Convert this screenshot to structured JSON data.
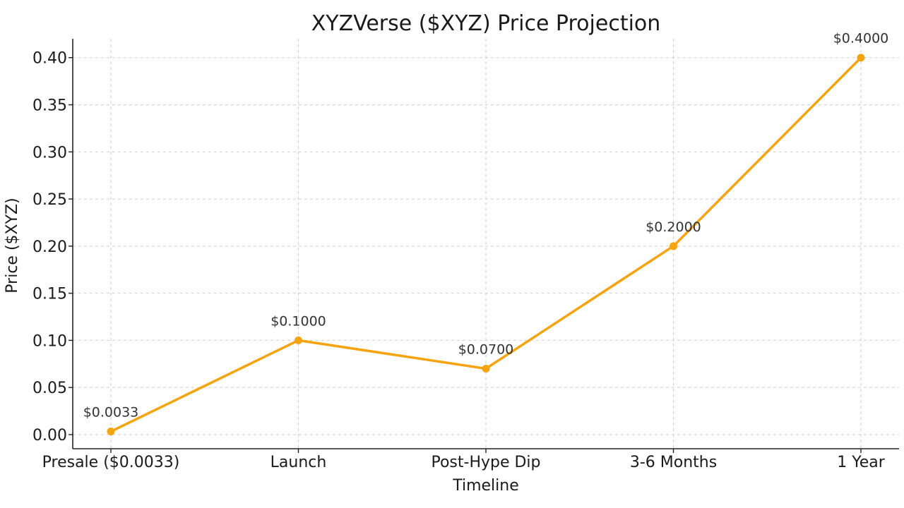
{
  "chart_data": {
    "type": "line",
    "title": "XYZVerse ($XYZ) Price Projection",
    "xlabel": "Timeline",
    "ylabel": "Price ($XYZ)",
    "categories": [
      "Presale ($0.0033)",
      "Launch",
      "Post-Hype Dip",
      "3-6 Months",
      "1 Year"
    ],
    "series": [
      {
        "values": [
          0.0033,
          0.1,
          0.07,
          0.2,
          0.4
        ],
        "labels": [
          "$0.0033",
          "$0.1000",
          "$0.0700",
          "$0.2000",
          "$0.4000"
        ],
        "color": "#F5A40F"
      }
    ],
    "ylim": [
      -0.015,
      0.42
    ],
    "yticks": [
      0.0,
      0.05,
      0.1,
      0.15,
      0.2,
      0.25,
      0.3,
      0.35,
      0.4
    ],
    "ytick_labels": [
      "0.00",
      "0.05",
      "0.10",
      "0.15",
      "0.20",
      "0.25",
      "0.30",
      "0.35",
      "0.40"
    ],
    "grid": true,
    "marker": "circle"
  }
}
